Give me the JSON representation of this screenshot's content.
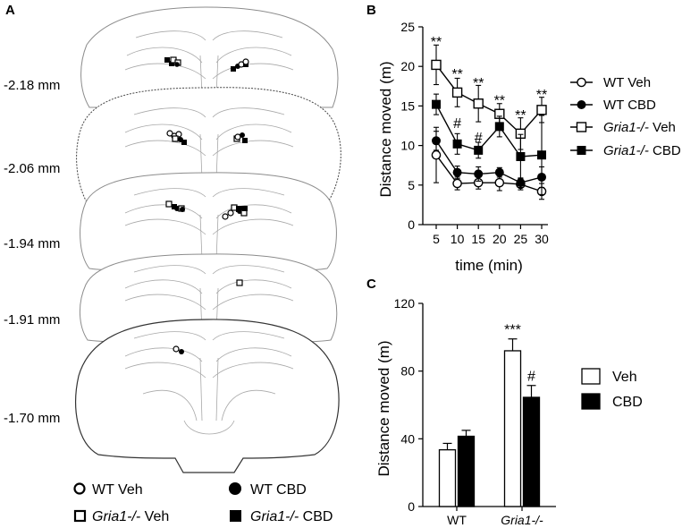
{
  "panel_a": {
    "label": "A",
    "depths": [
      "-2.18 mm",
      "-2.06 mm",
      "-1.94 mm",
      "-1.91 mm",
      "-1.70 mm"
    ],
    "legend": {
      "wt_veh": "WT Veh",
      "wt_cbd": "WT CBD",
      "gria_veh_italic": "Gria1-/-",
      "gria_veh_rest": " Veh",
      "gria_cbd_italic": "Gria1-/-",
      "gria_cbd_rest": " CBD"
    }
  },
  "chart_data": [
    {
      "panel": "B",
      "type": "line",
      "x": [
        5,
        10,
        15,
        20,
        25,
        30
      ],
      "xlabel": "time (min)",
      "ylabel": "Distance moved (m)",
      "ylim": [
        0,
        25
      ],
      "xticks": [
        "5",
        "10",
        "15",
        "20",
        "25",
        "30"
      ],
      "yticks": [
        "0",
        "5",
        "10",
        "15",
        "20",
        "25"
      ],
      "series": [
        {
          "name": "WT Veh",
          "marker": "open-circle",
          "values": [
            8.8,
            5.2,
            5.3,
            5.3,
            5.1,
            4.2
          ],
          "errors": [
            3.5,
            0.8,
            0.8,
            1.0,
            0.7,
            1.0
          ]
        },
        {
          "name": "WT CBD",
          "marker": "filled-circle",
          "values": [
            10.6,
            6.6,
            6.4,
            6.6,
            5.3,
            6.0
          ],
          "errors": [
            1.2,
            0.8,
            0.9,
            0.6,
            0.6,
            1.3
          ]
        },
        {
          "name": "Gria1-/- Veh",
          "name_italic": "Gria1-/-",
          "name_rest": " Veh",
          "marker": "open-square",
          "values": [
            20.2,
            16.7,
            15.3,
            14.0,
            11.5,
            14.5
          ],
          "errors": [
            2.5,
            1.8,
            2.3,
            1.3,
            2.0,
            1.6
          ]
        },
        {
          "name": "Gria1-/- CBD",
          "name_italic": "Gria1-/-",
          "name_rest": " CBD",
          "marker": "filled-square",
          "values": [
            15.2,
            10.2,
            9.4,
            12.4,
            8.6,
            8.8
          ],
          "errors": [
            1.3,
            1.3,
            1.0,
            1.3,
            2.8,
            5.0
          ]
        }
      ],
      "annotations": [
        {
          "x": 5,
          "y": 23.2,
          "text": "**"
        },
        {
          "x": 10,
          "y": 19.1,
          "text": "**"
        },
        {
          "x": 10,
          "y": 12.9,
          "text": "#"
        },
        {
          "x": 15,
          "y": 18.0,
          "text": "**"
        },
        {
          "x": 15,
          "y": 11.1,
          "text": "#"
        },
        {
          "x": 20,
          "y": 15.8,
          "text": "**"
        },
        {
          "x": 25,
          "y": 13.9,
          "text": "**"
        },
        {
          "x": 30,
          "y": 16.5,
          "text": "**"
        }
      ]
    },
    {
      "panel": "C",
      "type": "bar",
      "categories": [
        "WT",
        "Gria1-/-"
      ],
      "categories_italic": [
        false,
        true
      ],
      "ylabel": "Distance moved (m)",
      "ylim": [
        0,
        120
      ],
      "yticks": [
        "0",
        "40",
        "80",
        "120"
      ],
      "series": [
        {
          "name": "Veh",
          "color": "#ffffff",
          "values": [
            33.5,
            92.0
          ],
          "errors": [
            3.8,
            7.0
          ]
        },
        {
          "name": "CBD",
          "color": "#000000",
          "values": [
            41.5,
            64.5
          ],
          "errors": [
            3.5,
            7.0
          ]
        }
      ],
      "annotations": [
        {
          "category": "Gria1-/-",
          "series": "Veh",
          "text": "***"
        },
        {
          "category": "Gria1-/-",
          "series": "CBD",
          "text": "#"
        }
      ]
    }
  ]
}
